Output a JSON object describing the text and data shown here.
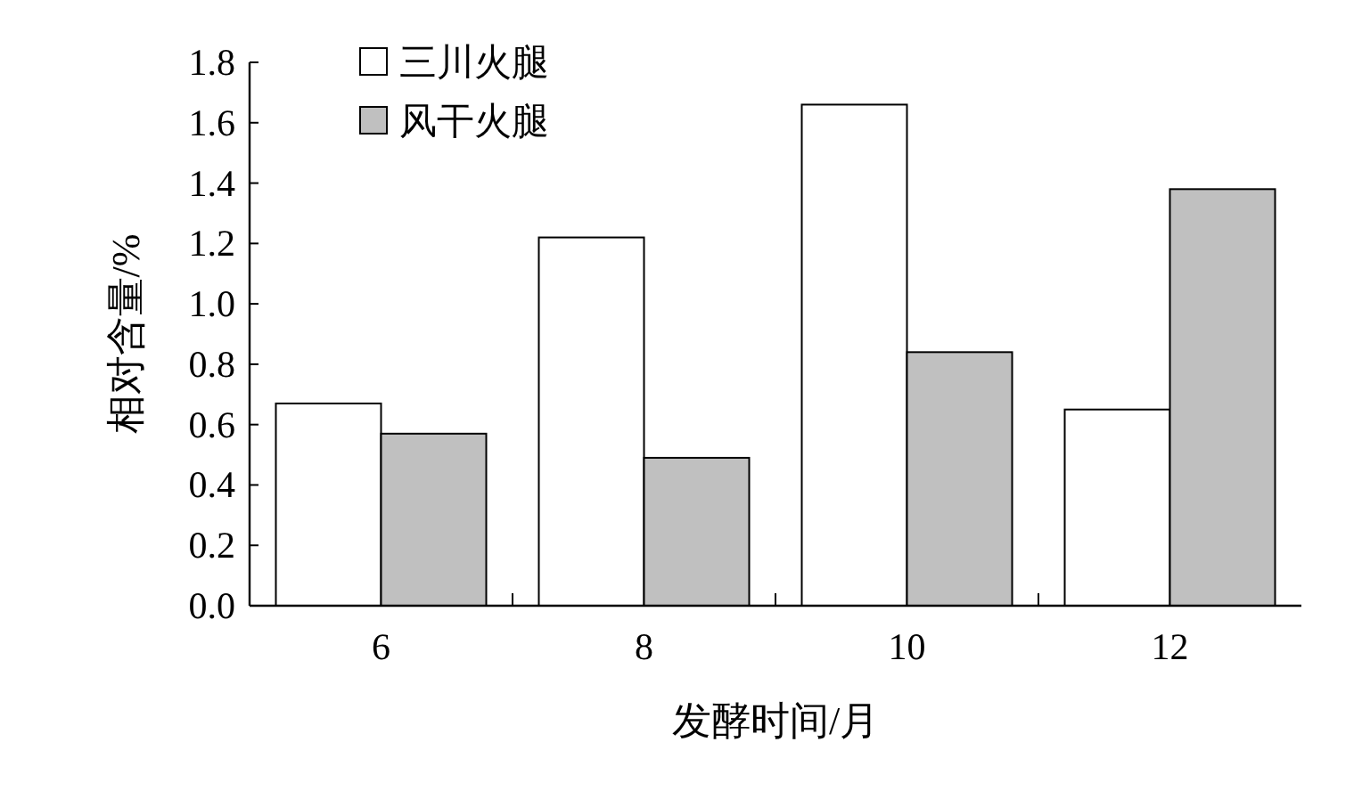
{
  "chart_data": {
    "type": "bar",
    "categories": [
      "6",
      "8",
      "10",
      "12"
    ],
    "series": [
      {
        "name": "三川火腿",
        "color": "#ffffff",
        "values": [
          0.67,
          1.22,
          1.66,
          0.65
        ]
      },
      {
        "name": "风干火腿",
        "color": "#c0c0c0",
        "values": [
          0.57,
          0.49,
          0.84,
          1.38
        ]
      }
    ],
    "ylim": [
      0,
      1.8
    ],
    "yticks": [
      {
        "value": 0,
        "label": "0.0"
      },
      0.2,
      0.4,
      0.6,
      0.8,
      {
        "value": 1,
        "label": "1.0"
      },
      1.2,
      1.4,
      1.6,
      1.8
    ],
    "xlabel": "发酵时间/月",
    "ylabel": "相对含量/%",
    "legend": "top left"
  }
}
